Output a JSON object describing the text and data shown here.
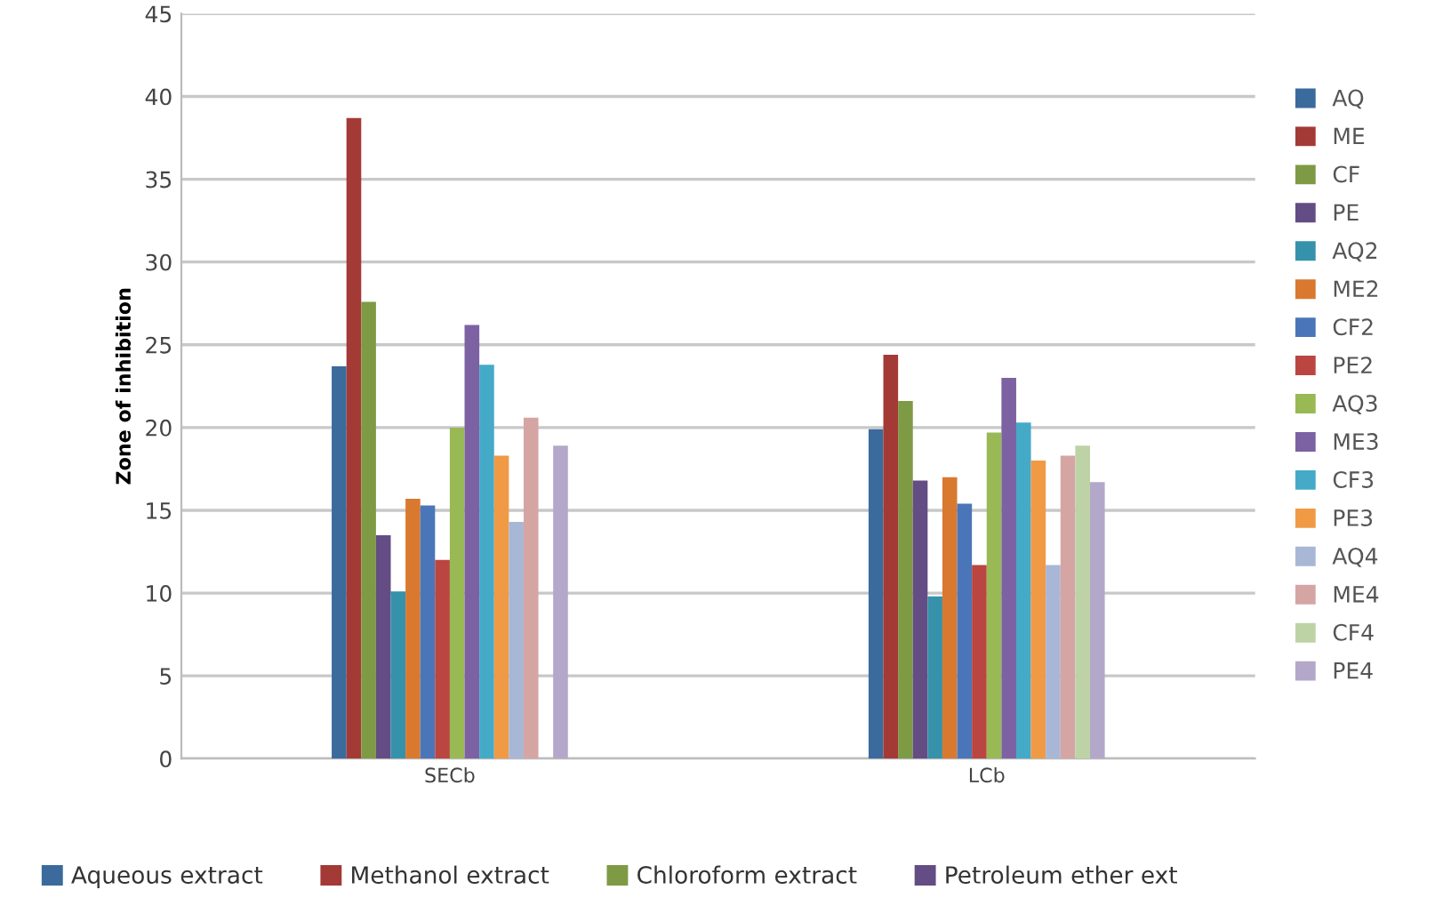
{
  "chart_data": {
    "type": "bar",
    "ylabel": "Zone of inhibition",
    "categories": [
      "SECb",
      "LCb"
    ],
    "ylim": [
      0,
      45
    ],
    "yticks": [
      0,
      5,
      10,
      15,
      20,
      25,
      30,
      35,
      40,
      45
    ],
    "grid": "y",
    "legend": "right",
    "series": [
      {
        "name": "AQ",
        "color": "#3b6a9c",
        "values": [
          23.7,
          19.9
        ]
      },
      {
        "name": "ME",
        "color": "#a33a36",
        "values": [
          38.7,
          24.4
        ]
      },
      {
        "name": "CF",
        "color": "#7f9a44",
        "values": [
          27.6,
          21.6
        ]
      },
      {
        "name": "PE",
        "color": "#634d84",
        "values": [
          13.5,
          16.8
        ]
      },
      {
        "name": "AQ2",
        "color": "#3692aa",
        "values": [
          10.1,
          9.8
        ]
      },
      {
        "name": "ME2",
        "color": "#d9792f",
        "values": [
          15.7,
          17.0
        ]
      },
      {
        "name": "CF2",
        "color": "#4a76b9",
        "values": [
          15.3,
          15.4
        ]
      },
      {
        "name": "PE2",
        "color": "#bb4540",
        "values": [
          12.0,
          11.7
        ]
      },
      {
        "name": "AQ3",
        "color": "#98b954",
        "values": [
          20.0,
          19.7
        ]
      },
      {
        "name": "ME3",
        "color": "#7c62a2",
        "values": [
          26.2,
          23.0
        ]
      },
      {
        "name": "CF3",
        "color": "#44aac8",
        "values": [
          23.8,
          20.3
        ]
      },
      {
        "name": "PE3",
        "color": "#f09a45",
        "values": [
          18.3,
          18.0
        ]
      },
      {
        "name": "AQ4",
        "color": "#a9b7d6",
        "values": [
          14.3,
          11.7
        ]
      },
      {
        "name": "ME4",
        "color": "#d5a5a4",
        "values": [
          20.6,
          18.3
        ]
      },
      {
        "name": "CF4",
        "color": "#bdd3a6",
        "values": [
          null,
          18.9
        ]
      },
      {
        "name": "PE4",
        "color": "#b3a8c9",
        "values": [
          18.9,
          16.7
        ]
      }
    ],
    "annotations": [
      "Aqueous extract",
      "Methanol extract",
      "Chloroform extract",
      "Petroleum ether ext"
    ]
  }
}
